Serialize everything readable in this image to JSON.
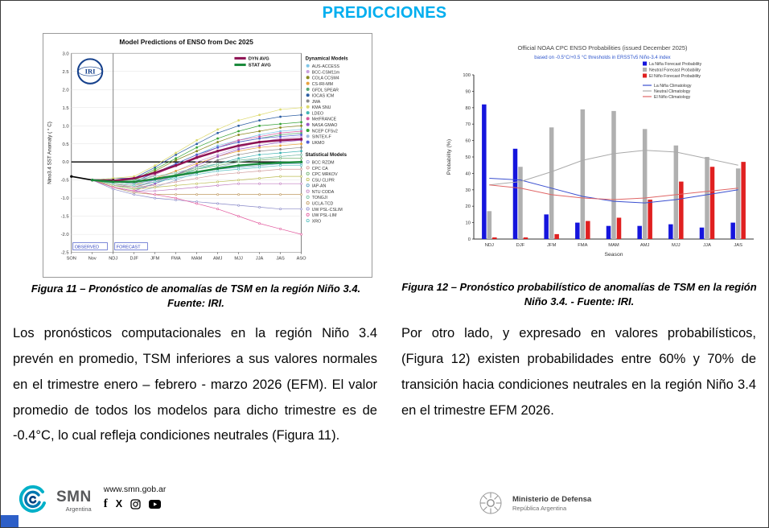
{
  "page": {
    "title": "PREDICCIONES"
  },
  "figures": {
    "fig11_caption": "Figura 11 – Pronóstico de anomalías de TSM en la región Niño 3.4. Fuente: IRI.",
    "fig12_caption": "Figura 12 – Pronóstico probabilístico de anomalías de TSM en la región Niño 3.4. - Fuente: IRI."
  },
  "body": {
    "left_paragraph": "Los pronósticos computacionales en la región Niño 3.4 prevén en promedio, TSM inferiores a sus valores normales en el trimestre enero – febrero - marzo 2026 (EFM). El valor promedio de todos los modelos para dicho trimestre es de -0.4°C, lo cual refleja condiciones neutrales (Figura 11).",
    "right_paragraph": "Por otro lado, y expresado en valores probabilísticos, (Figura 12) existen probabilidades entre 60% y 70% de transición hacia condiciones neutrales en la región Niño 3.4 en el trimestre EFM 2026."
  },
  "footer": {
    "website": "www.smn.gob.ar",
    "smn_name": "SMN",
    "smn_sub": "Argentina",
    "ministry_line1": "Ministerio de Defensa",
    "ministry_line2": "República Argentina",
    "social_icons": [
      "facebook-icon",
      "x-icon",
      "instagram-icon",
      "youtube-icon"
    ]
  },
  "chart_data": [
    {
      "type": "line",
      "title": "Model Predictions of ENSO from Dec 2025",
      "ylabel": "Nino3.4 SST Anomaly ( ° C)",
      "ylim": [
        -2.5,
        3.0
      ],
      "x": [
        "SON",
        "Nov",
        "NDJ",
        "DJF",
        "JFM",
        "FMA",
        "MAM",
        "AMJ",
        "MJJ",
        "JJA",
        "JAS",
        "ASO"
      ],
      "zone_labels": {
        "observed": "OBSERVED",
        "forecast": "FORECAST"
      },
      "logo": "IRI",
      "observed": {
        "name": "Observed",
        "color": "#000000",
        "values": [
          -0.4,
          -0.5,
          -0.5,
          null,
          null,
          null,
          null,
          null,
          null,
          null,
          null,
          null
        ]
      },
      "avg_series": [
        {
          "name": "DYN AVG",
          "color": "#8e1354",
          "values": [
            null,
            -0.5,
            -0.52,
            -0.45,
            -0.3,
            -0.1,
            0.12,
            0.3,
            0.45,
            0.55,
            0.6,
            0.63
          ]
        },
        {
          "name": "STAT AVG",
          "color": "#1b8a3c",
          "values": [
            null,
            -0.5,
            -0.55,
            -0.55,
            -0.47,
            -0.38,
            -0.28,
            -0.18,
            -0.1,
            -0.05,
            -0.02,
            0.0
          ]
        }
      ],
      "model_groups": [
        {
          "label": "Dynamical Models",
          "marker": "filled",
          "models": [
            {
              "name": "AUS-ACCESS",
              "color": "#7fc6e8",
              "values": [
                null,
                -0.5,
                -0.55,
                -0.6,
                -0.35,
                -0.05,
                0.2,
                0.45,
                0.6,
                0.75,
                0.85,
                0.9
              ]
            },
            {
              "name": "BCC-CSM11m",
              "color": "#c9a0dc",
              "values": [
                null,
                -0.5,
                -0.6,
                -0.7,
                -0.5,
                -0.25,
                0.0,
                0.2,
                0.4,
                0.55,
                0.65,
                0.7
              ]
            },
            {
              "name": "COLA CCSM4",
              "color": "#8a8a22",
              "values": [
                null,
                -0.5,
                -0.5,
                -0.5,
                -0.25,
                0.05,
                0.3,
                0.55,
                0.75,
                0.85,
                0.95,
                1.0
              ]
            },
            {
              "name": "CS-IRI-MM",
              "color": "#e8a33d",
              "values": [
                null,
                -0.5,
                -0.6,
                -0.65,
                -0.45,
                -0.25,
                -0.05,
                0.15,
                0.3,
                0.4,
                0.45,
                0.5
              ]
            },
            {
              "name": "GFDL SPEAR",
              "color": "#57a773",
              "values": [
                null,
                -0.5,
                -0.5,
                -0.55,
                -0.3,
                -0.05,
                0.2,
                0.4,
                0.55,
                0.65,
                0.75,
                0.8
              ]
            },
            {
              "name": "IOCAS ICM",
              "color": "#2e5fa3",
              "values": [
                null,
                -0.5,
                -0.45,
                -0.45,
                -0.15,
                0.2,
                0.5,
                0.8,
                1.0,
                1.15,
                1.25,
                1.3
              ]
            },
            {
              "name": "JMA",
              "color": "#8c8c8c",
              "values": [
                null,
                -0.5,
                -0.65,
                -0.7,
                -0.55,
                -0.35,
                -0.15,
                0.05,
                0.2,
                0.3,
                0.35,
                0.4
              ]
            },
            {
              "name": "KMA SNU",
              "color": "#ddda6e",
              "values": [
                null,
                -0.5,
                -0.45,
                -0.4,
                -0.1,
                0.25,
                0.6,
                0.9,
                1.15,
                1.3,
                1.45,
                1.5
              ]
            },
            {
              "name": "LDEO",
              "color": "#45b5b5",
              "values": [
                null,
                -0.5,
                -0.65,
                -0.75,
                -0.6,
                -0.4,
                -0.2,
                -0.05,
                0.1,
                0.2,
                0.25,
                0.3
              ]
            },
            {
              "name": "MetFRANCE",
              "color": "#d4589e",
              "values": [
                null,
                -0.5,
                -0.55,
                -0.6,
                -0.35,
                -0.1,
                0.15,
                0.4,
                0.6,
                0.7,
                0.8,
                0.85
              ]
            },
            {
              "name": "NASA GMAO",
              "color": "#9a59c7",
              "values": [
                null,
                -0.5,
                -0.7,
                -0.8,
                -0.6,
                -0.35,
                -0.1,
                0.15,
                0.35,
                0.45,
                0.55,
                0.6
              ]
            },
            {
              "name": "NCEP CFSv2",
              "color": "#3aa53a",
              "values": [
                null,
                -0.5,
                -0.5,
                -0.5,
                -0.2,
                0.1,
                0.4,
                0.65,
                0.85,
                1.0,
                1.05,
                1.1
              ]
            },
            {
              "name": "SINTEX-F",
              "color": "#a0b8e0",
              "values": [
                null,
                -0.5,
                -0.7,
                -0.85,
                -0.7,
                -0.5,
                -0.3,
                -0.15,
                0.0,
                0.1,
                0.15,
                0.2
              ]
            },
            {
              "name": "UKMO",
              "color": "#5560d6",
              "values": [
                null,
                -0.5,
                -0.5,
                -0.55,
                -0.3,
                -0.05,
                0.2,
                0.4,
                0.55,
                0.65,
                0.7,
                0.75
              ]
            }
          ]
        },
        {
          "label": "Statistical Models",
          "marker": "open",
          "models": [
            {
              "name": "BCC RZDM",
              "color": "#9a9ad0",
              "values": [
                null,
                -0.5,
                -0.55,
                -0.6,
                -0.5,
                -0.4,
                -0.3,
                -0.2,
                -0.1,
                -0.05,
                0.0,
                0.0
              ]
            },
            {
              "name": "CPC CA",
              "color": "#d09a9a",
              "values": [
                null,
                -0.5,
                -0.6,
                -0.7,
                -0.65,
                -0.55,
                -0.45,
                -0.35,
                -0.3,
                -0.25,
                -0.2,
                -0.2
              ]
            },
            {
              "name": "CPC MRKOV",
              "color": "#6ab06a",
              "values": [
                null,
                -0.5,
                -0.5,
                -0.55,
                -0.45,
                -0.35,
                -0.2,
                -0.1,
                0.0,
                0.05,
                0.1,
                0.1
              ]
            },
            {
              "name": "CSU CLIPR",
              "color": "#bdbd55",
              "values": [
                null,
                -0.5,
                -0.65,
                -0.75,
                -0.7,
                -0.65,
                -0.6,
                -0.55,
                -0.5,
                -0.45,
                -0.4,
                -0.4
              ]
            },
            {
              "name": "IAP-AN",
              "color": "#5a9ec0",
              "values": [
                null,
                -0.5,
                -0.55,
                -0.6,
                -0.5,
                -0.4,
                -0.3,
                -0.2,
                -0.15,
                -0.1,
                -0.05,
                -0.05
              ]
            },
            {
              "name": "NTU CODA",
              "color": "#c07ec0",
              "values": [
                null,
                -0.5,
                -0.7,
                -0.8,
                -0.8,
                -0.75,
                -0.7,
                -0.65,
                -0.6,
                -0.6,
                -0.6,
                -0.6
              ]
            },
            {
              "name": "TONGJI",
              "color": "#74c0a0",
              "values": [
                null,
                -0.5,
                -0.5,
                -0.5,
                -0.4,
                -0.3,
                -0.15,
                -0.05,
                0.05,
                0.1,
                0.15,
                0.2
              ]
            },
            {
              "name": "UCLA-TCD",
              "color": "#c09a62",
              "values": [
                null,
                -0.5,
                -0.7,
                -0.85,
                -0.9,
                -0.9,
                -0.9,
                -0.9,
                -0.9,
                -0.9,
                -0.9,
                -0.9
              ]
            },
            {
              "name": "UW PSL-CSLIM",
              "color": "#8888c8",
              "values": [
                null,
                -0.5,
                -0.75,
                -0.9,
                -1.0,
                -1.05,
                -1.1,
                -1.15,
                -1.2,
                -1.25,
                -1.3,
                -1.3
              ]
            },
            {
              "name": "UW PSL-LIM",
              "color": "#e25a9e",
              "values": [
                null,
                -0.5,
                -0.7,
                -0.8,
                -0.9,
                -1.0,
                -1.15,
                -1.3,
                -1.5,
                -1.7,
                -1.85,
                -2.0
              ]
            },
            {
              "name": "XRO",
              "color": "#58c0c0",
              "values": [
                null,
                -0.5,
                -0.6,
                -0.65,
                -0.55,
                -0.45,
                -0.35,
                -0.25,
                -0.2,
                -0.15,
                -0.1,
                -0.1
              ]
            }
          ]
        }
      ]
    },
    {
      "type": "bar",
      "title": "Official NOAA CPC ENSO Probabilities (issued December 2025)",
      "subtitle": "based on -0.5°C/+0.5 °C thresholds in ERSSTv5 Niño-3.4 index",
      "xlabel": "Season",
      "ylabel": "Probability (%)",
      "ylim": [
        0,
        100
      ],
      "categories": [
        "NDJ",
        "DJF",
        "JFM",
        "FMA",
        "MAM",
        "AMJ",
        "MJJ",
        "JJA",
        "JAS"
      ],
      "bar_series": [
        {
          "name": "La Niña Forecast Probability",
          "color": "#1515dd",
          "values": [
            82,
            55,
            15,
            10,
            8,
            8,
            9,
            7,
            10
          ]
        },
        {
          "name": "Neutral Forecast Probability",
          "color": "#b0b0b0",
          "values": [
            17,
            44,
            68,
            79,
            78,
            67,
            57,
            50,
            43
          ]
        },
        {
          "name": "El Niño Forecast Probability",
          "color": "#e02020",
          "values": [
            1,
            1,
            3,
            11,
            13,
            24,
            35,
            44,
            47
          ]
        }
      ],
      "line_series": [
        {
          "name": "La Niña Climatology",
          "color": "#3a4fd0",
          "values": [
            37,
            36,
            31,
            26,
            23,
            22,
            24,
            27,
            30
          ]
        },
        {
          "name": "Neutral Climatology",
          "color": "#aaaaaa",
          "values": [
            33,
            35,
            41,
            48,
            52,
            54,
            53,
            49,
            45
          ]
        },
        {
          "name": "El Niño Climatology",
          "color": "#e06666",
          "values": [
            33,
            31,
            27,
            25,
            24,
            25,
            27,
            29,
            31
          ]
        }
      ]
    }
  ]
}
